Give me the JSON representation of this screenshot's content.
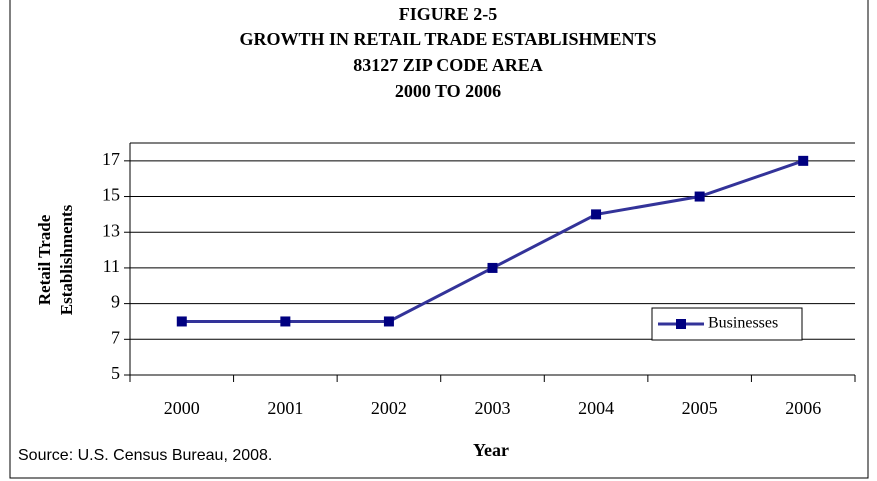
{
  "chart_data": {
    "type": "line",
    "title": [
      "FIGURE 2-5",
      "GROWTH IN RETAIL TRADE ESTABLISHMENTS",
      "83127 ZIP CODE AREA",
      "2000 TO 2006"
    ],
    "y_label": [
      "Retail Trade",
      "Establishments"
    ],
    "x_label": "Year",
    "source": "Source: U.S. Census Bureau, 2008.",
    "categories": [
      "2000",
      "2001",
      "2002",
      "2003",
      "2004",
      "2005",
      "2006"
    ],
    "series": [
      {
        "name": "Businesses",
        "color": "#333399",
        "marker_color": "#000080",
        "values": [
          8,
          8,
          8,
          11,
          14,
          15,
          17
        ]
      }
    ],
    "ylim": [
      5,
      18
    ],
    "yticks": [
      5,
      7,
      9,
      11,
      13,
      15,
      17
    ],
    "grid": true,
    "legend_position": "lower right"
  }
}
